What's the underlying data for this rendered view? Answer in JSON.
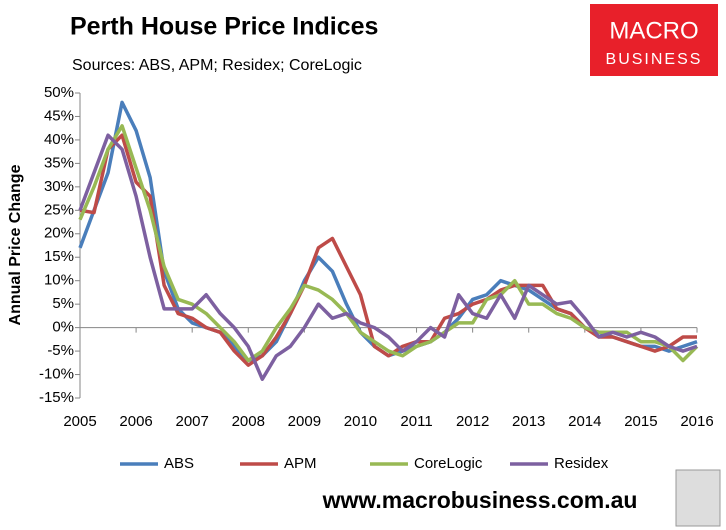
{
  "chart_data": {
    "type": "line",
    "title": "Perth House Price Indices",
    "subtitle": "Sources: ABS, APM; Residex; CoreLogic",
    "y_label": "Annual Price Change",
    "logo": [
      "MACRO",
      "BUSINESS"
    ],
    "footer": "www.macrobusiness.com.au",
    "x": [
      2005,
      2005.25,
      2005.5,
      2005.75,
      2006,
      2006.25,
      2006.5,
      2006.75,
      2007,
      2007.25,
      2007.5,
      2007.75,
      2008,
      2008.25,
      2008.5,
      2008.75,
      2009,
      2009.25,
      2009.5,
      2009.75,
      2010,
      2010.25,
      2010.5,
      2010.75,
      2011,
      2011.25,
      2011.5,
      2011.75,
      2012,
      2012.25,
      2012.5,
      2012.75,
      2013,
      2013.25,
      2013.5,
      2013.75,
      2014,
      2014.25,
      2014.5,
      2014.75,
      2015,
      2015.25,
      2015.5,
      2015.75,
      2016
    ],
    "series": [
      {
        "name": "ABS",
        "color": "#4a7ebb",
        "values": [
          17,
          25,
          33,
          48,
          42,
          32,
          12,
          4,
          1,
          0,
          -1,
          -4,
          -7,
          -6,
          -3,
          3,
          10,
          15,
          12,
          5,
          -1,
          -4,
          -6,
          -5,
          -4,
          -3,
          -1,
          2,
          6,
          7,
          10,
          9,
          8,
          6,
          4,
          3,
          0,
          -1,
          -2,
          -3,
          -4,
          -4,
          -5,
          -4,
          -3
        ]
      },
      {
        "name": "APM",
        "color": "#be4b48",
        "values": [
          25,
          24.5,
          38,
          41,
          31,
          28,
          9,
          3,
          2,
          0,
          -1,
          -5,
          -8,
          -6,
          -2,
          3,
          9,
          17,
          19,
          13,
          7,
          -4,
          -6,
          -4,
          -3,
          -3,
          2,
          3,
          5,
          6,
          8,
          9,
          9,
          9,
          4,
          3,
          0,
          -2,
          -2,
          -3,
          -4,
          -5,
          -4,
          -2,
          -2
        ]
      },
      {
        "name": "CoreLogic",
        "color": "#98b954",
        "values": [
          23,
          30,
          38,
          43,
          34,
          25,
          13,
          6,
          5,
          3,
          0,
          -3,
          -7,
          -5,
          0,
          4,
          9,
          8,
          6,
          3,
          -1,
          -3,
          -5,
          -6,
          -4,
          -3,
          -1,
          1,
          1,
          6,
          7,
          10,
          5,
          5,
          3,
          2,
          0,
          -1,
          -1,
          -1,
          -3,
          -3,
          -4,
          -7,
          -4
        ]
      },
      {
        "name": "Residex",
        "color": "#7d60a0",
        "values": [
          25,
          33,
          41,
          38,
          28,
          15,
          4,
          4,
          4,
          7,
          3,
          0,
          -4,
          -11,
          -6,
          -4,
          0,
          5,
          2,
          3,
          1,
          0,
          -2,
          -5,
          -3,
          0,
          -2,
          7,
          3,
          2,
          7,
          2,
          9,
          7,
          5,
          5.5,
          2,
          -2,
          -1,
          -2,
          -1,
          -2,
          -4,
          -5,
          -4
        ]
      }
    ],
    "xlim": [
      2005,
      2016
    ],
    "xticks": [
      2005,
      2006,
      2007,
      2008,
      2009,
      2010,
      2011,
      2012,
      2013,
      2014,
      2015,
      2016
    ],
    "ylim": [
      -15,
      50
    ],
    "yticks": [
      {
        "value": -15,
        "label": "-15%"
      },
      {
        "value": -10,
        "label": "-10%"
      },
      {
        "value": -5,
        "label": "-5%"
      },
      {
        "value": 0,
        "label": "0%"
      },
      {
        "value": 5,
        "label": "5%"
      },
      {
        "value": 10,
        "label": "10%"
      },
      {
        "value": 15,
        "label": "15%"
      },
      {
        "value": 20,
        "label": "20%"
      },
      {
        "value": 25,
        "label": "25%"
      },
      {
        "value": 30,
        "label": "30%"
      },
      {
        "value": 35,
        "label": "35%"
      },
      {
        "value": 40,
        "label": "40%"
      },
      {
        "value": 45,
        "label": "45%"
      },
      {
        "value": 50,
        "label": "50%"
      }
    ],
    "legend": "bottom"
  }
}
